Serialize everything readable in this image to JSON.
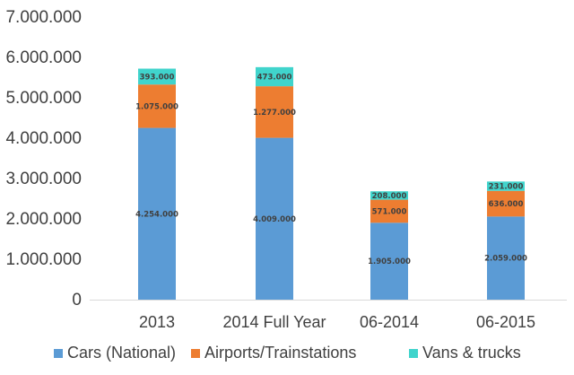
{
  "chart_data": {
    "type": "bar",
    "stacked": true,
    "categories": [
      "2013",
      "2014 Full Year",
      "06-2014",
      "06-2015"
    ],
    "series": [
      {
        "name": "Cars (National)",
        "color": "#5b9bd5",
        "values": [
          4254000,
          4009000,
          1905000,
          2059000
        ],
        "labels": [
          "4.254.000",
          "4.009.000",
          "1.905.000",
          "2.059.000"
        ]
      },
      {
        "name": "Airports/Trainstations",
        "color": "#ed7d31",
        "values": [
          1075000,
          1277000,
          571000,
          636000
        ],
        "labels": [
          "1.075.000",
          "1.277.000",
          "571.000",
          "636.000"
        ]
      },
      {
        "name": "Vans & trucks",
        "color": "#40d4cc",
        "values": [
          393000,
          473000,
          208000,
          231000
        ],
        "labels": [
          "393.000",
          "473.000",
          "208.000",
          "231.000"
        ]
      }
    ],
    "ylim": [
      0,
      7000000
    ],
    "yticks": [
      0,
      1000000,
      2000000,
      3000000,
      4000000,
      5000000,
      6000000,
      7000000
    ],
    "ytick_labels": [
      "0",
      "1.000.000",
      "2.000.000",
      "3.000.000",
      "4.000.000",
      "5.000.000",
      "6.000.000",
      "7.000.000"
    ],
    "grid": false,
    "legend_position": "bottom",
    "title": "",
    "xlabel": "",
    "ylabel": ""
  }
}
